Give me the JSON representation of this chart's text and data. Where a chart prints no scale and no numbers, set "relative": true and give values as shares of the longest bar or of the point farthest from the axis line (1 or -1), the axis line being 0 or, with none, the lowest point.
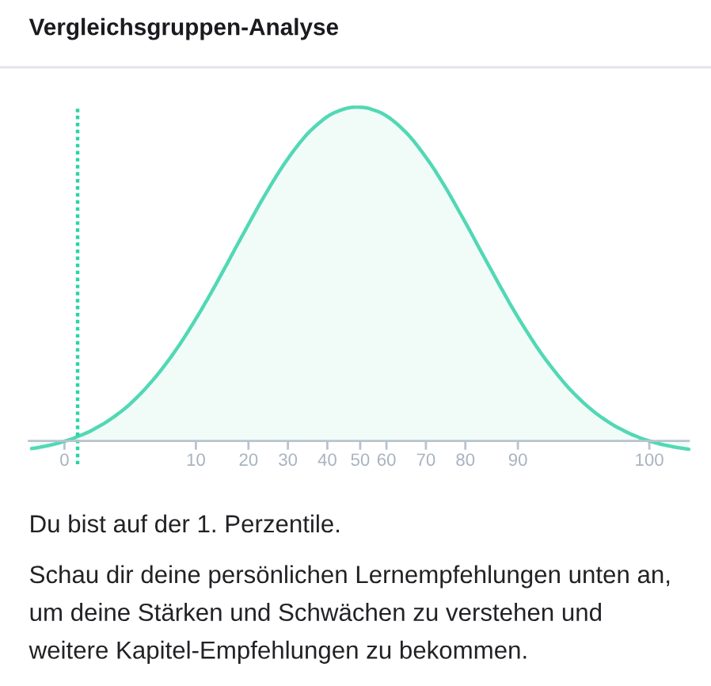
{
  "chart_data": {
    "type": "area",
    "title": "Vergleichsgruppen-Analyse",
    "relative": true,
    "categories": [
      null,
      null,
      null,
      null,
      null,
      "0",
      null,
      null,
      null,
      null,
      null,
      null,
      null,
      null,
      null,
      null,
      null,
      null,
      null,
      null,
      null,
      null,
      null,
      null,
      null,
      "10",
      null,
      null,
      null,
      null,
      null,
      null,
      null,
      "20",
      null,
      null,
      null,
      null,
      null,
      "30",
      null,
      null,
      null,
      null,
      null,
      "40",
      null,
      null,
      null,
      null,
      "50",
      null,
      null,
      null,
      "60",
      null,
      null,
      null,
      null,
      null,
      "70",
      null,
      null,
      null,
      null,
      null,
      "80",
      null,
      null,
      null,
      null,
      null,
      null,
      null,
      "90",
      null,
      null,
      null,
      null,
      null,
      null,
      null,
      null,
      null,
      null,
      null,
      null,
      null,
      null,
      null,
      null,
      null,
      null,
      null,
      "100",
      null,
      null,
      null,
      null,
      null,
      null
    ],
    "series": [
      {
        "color": "#52d8b4",
        "values": [
          -0.023,
          -0.02,
          -0.016,
          -0.012,
          -0.007,
          -0.001,
          0.005,
          0.013,
          0.021,
          0.03,
          0.041,
          0.052,
          0.065,
          0.079,
          0.094,
          0.111,
          0.13,
          0.15,
          0.172,
          0.195,
          0.22,
          0.246,
          0.274,
          0.303,
          0.334,
          0.366,
          0.399,
          0.433,
          0.468,
          0.504,
          0.54,
          0.577,
          0.613,
          0.649,
          0.685,
          0.72,
          0.753,
          0.786,
          0.817,
          0.846,
          0.873,
          0.898,
          0.921,
          0.94,
          0.957,
          0.972,
          0.983,
          0.991,
          0.997,
          1.0,
          1.0,
          0.998,
          0.992,
          0.985,
          0.974,
          0.96,
          0.943,
          0.924,
          0.902,
          0.877,
          0.85,
          0.822,
          0.791,
          0.759,
          0.725,
          0.69,
          0.655,
          0.619,
          0.582,
          0.546,
          0.51,
          0.474,
          0.439,
          0.404,
          0.371,
          0.339,
          0.308,
          0.278,
          0.25,
          0.224,
          0.199,
          0.175,
          0.153,
          0.133,
          0.114,
          0.097,
          0.081,
          0.067,
          0.054,
          0.042,
          0.032,
          0.022,
          0.014,
          0.006,
          0.0,
          -0.006,
          -0.011,
          -0.015,
          -0.019,
          -0.022,
          -0.025
        ]
      }
    ],
    "annotations": [
      "Du bist auf der 1. Perzentile.",
      "Schau dir deine persönlichen Lernempfehlungen unten an,\num deine Stärken und Schwächen zu verstehen und\nweitere Kapitel-Empfehlungen zu bekommen."
    ]
  }
}
